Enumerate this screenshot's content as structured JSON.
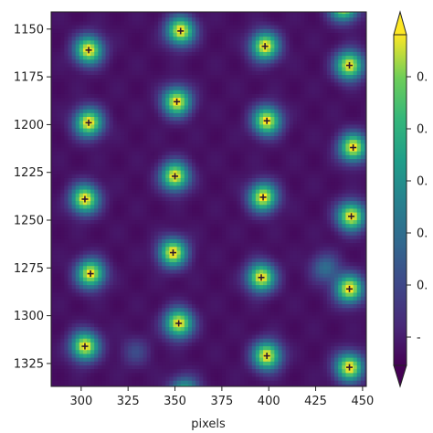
{
  "chart_data": {
    "type": "heatmap",
    "xlabel": "pixels",
    "ylabel": "",
    "xlim": [
      284,
      452
    ],
    "ylim": [
      1337,
      1141
    ],
    "x_ticks": [
      "300",
      "325",
      "350",
      "375",
      "400",
      "425",
      "450"
    ],
    "y_ticks": [
      "1150",
      "1175",
      "1200",
      "1225",
      "1250",
      "1275",
      "1300",
      "1325"
    ],
    "colormap": "viridis",
    "colorbar": {
      "extend": "both",
      "tick_labels": [
        "0.",
        "0.",
        "0.",
        "0.",
        "0.",
        "-"
      ]
    },
    "background_level": 0.05,
    "peaks": [
      {
        "x": 304,
        "y": 1161,
        "marker": true
      },
      {
        "x": 353,
        "y": 1151,
        "marker": true
      },
      {
        "x": 398,
        "y": 1159,
        "marker": true
      },
      {
        "x": 443,
        "y": 1169,
        "marker": true
      },
      {
        "x": 304,
        "y": 1199,
        "marker": true
      },
      {
        "x": 351,
        "y": 1188,
        "marker": true
      },
      {
        "x": 399,
        "y": 1198,
        "marker": true
      },
      {
        "x": 445,
        "y": 1212,
        "marker": true
      },
      {
        "x": 302,
        "y": 1239,
        "marker": true
      },
      {
        "x": 350,
        "y": 1227,
        "marker": true
      },
      {
        "x": 397,
        "y": 1238,
        "marker": true
      },
      {
        "x": 444,
        "y": 1248,
        "marker": true
      },
      {
        "x": 305,
        "y": 1278,
        "marker": true
      },
      {
        "x": 349,
        "y": 1267,
        "marker": true
      },
      {
        "x": 396,
        "y": 1280,
        "marker": true
      },
      {
        "x": 443,
        "y": 1286,
        "marker": true
      },
      {
        "x": 302,
        "y": 1316,
        "marker": true
      },
      {
        "x": 352,
        "y": 1304,
        "marker": true
      },
      {
        "x": 399,
        "y": 1321,
        "marker": true
      },
      {
        "x": 443,
        "y": 1327,
        "marker": true
      },
      {
        "x": 440,
        "y": 1138,
        "marker": false
      },
      {
        "x": 430,
        "y": 1275,
        "marker": false,
        "amplitude": 0.35
      },
      {
        "x": 329,
        "y": 1319,
        "marker": false,
        "amplitude": 0.2
      },
      {
        "x": 355,
        "y": 1340,
        "marker": false,
        "amplitude": 0.7
      }
    ]
  }
}
